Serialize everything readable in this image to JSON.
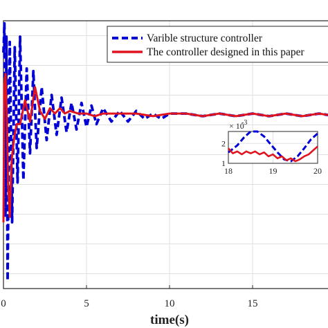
{
  "chart_data": {
    "type": "line",
    "xlabel": "time(s)",
    "xlim": [
      0,
      20
    ],
    "xticks": [
      "0",
      "5",
      "10",
      "15"
    ],
    "ylim": [
      -0.0065,
      0.0036
    ],
    "grid": true,
    "legend_position": "top-right",
    "colors": {
      "series_0": "#0000d6",
      "series_1": "#e0141e"
    },
    "series": [
      {
        "name": "Varible structure controller",
        "style": "dashed",
        "x": [
          0,
          0.06,
          0.12,
          0.18,
          0.25,
          0.38,
          0.52,
          0.68,
          0.85,
          1.0,
          1.2,
          1.4,
          1.6,
          1.8,
          2.0,
          2.3,
          2.6,
          2.9,
          3.2,
          3.5,
          3.8,
          4.1,
          4.4,
          4.7,
          5.0,
          5.3,
          5.6,
          6.0,
          6.5,
          7.0,
          7.5,
          8.0,
          8.5,
          9.0,
          9.5,
          10,
          11,
          12,
          13,
          14,
          15,
          16,
          17,
          18,
          19,
          20
        ],
        "values": [
          0.0024,
          0.0035,
          -0.0038,
          0.003,
          -0.0062,
          0.0028,
          -0.004,
          0.0026,
          -0.0025,
          0.003,
          -0.0024,
          0.0018,
          -0.0014,
          0.0017,
          -0.0012,
          0.0011,
          -0.0009,
          0.0008,
          -0.0007,
          0.0007,
          -0.0006,
          0.0005,
          -0.0005,
          0.0005,
          -0.0004,
          0.0004,
          -0.0003,
          0.0003,
          -0.0002,
          0.0002,
          -0.0002,
          0.0002,
          -0.0001,
          0.0001,
          -0.0001,
          0.0001,
          0.0001,
          0.0,
          0.0001,
          0.0,
          0.0001,
          0.0,
          0.0001,
          0.0,
          0.0001,
          0.0
        ]
      },
      {
        "name": "The controller designed in this paper",
        "style": "solid",
        "x": [
          0,
          0.05,
          0.12,
          0.2,
          0.28,
          0.38,
          0.5,
          0.65,
          0.8,
          1.0,
          1.3,
          1.6,
          1.9,
          2.2,
          2.5,
          2.8,
          3.1,
          3.4,
          3.7,
          4.0,
          4.5,
          5.0,
          5.5,
          6.0,
          7.0,
          8.0,
          9.0,
          10,
          11,
          12,
          13,
          14,
          15,
          16,
          17,
          18,
          19,
          20
        ],
        "values": [
          -0.004,
          0.0012,
          0.0016,
          0.0001,
          -0.0026,
          -0.0038,
          -0.0016,
          -0.0008,
          -0.0003,
          -0.0003,
          0.0006,
          -0.0002,
          0.0011,
          0.0002,
          -0.0001,
          0.0003,
          0.0001,
          0.0003,
          0.0001,
          0.0002,
          0.0001,
          0.0001,
          0.0,
          0.0001,
          0.0001,
          0.0001,
          0.0,
          0.0001,
          0.0001,
          0.0,
          0.0001,
          0.0,
          0.0001,
          0.0,
          0.0001,
          0.0,
          0.0001,
          0.0
        ]
      }
    ],
    "inset": {
      "x_range": [
        18,
        20
      ],
      "y_range": [
        1,
        2.6
      ],
      "xticks": [
        "18",
        "19",
        "20"
      ],
      "yticks": [
        "1",
        "2"
      ],
      "y_multiplier_base": "× 10",
      "y_multiplier_exp": "-3",
      "series": [
        {
          "name": "Varible structure controller",
          "x": [
            18.0,
            18.2,
            18.35,
            18.5,
            18.65,
            18.8,
            18.95,
            19.1,
            19.25,
            19.4,
            19.55,
            19.7,
            19.85,
            20.0
          ],
          "values": [
            1.55,
            1.9,
            2.3,
            2.6,
            2.6,
            2.35,
            1.95,
            1.55,
            1.2,
            1.1,
            1.35,
            1.75,
            2.2,
            2.5
          ]
        },
        {
          "name": "The controller designed in this paper",
          "x": [
            18.0,
            18.1,
            18.2,
            18.3,
            18.4,
            18.5,
            18.6,
            18.7,
            18.8,
            18.9,
            19.0,
            19.1,
            19.2,
            19.3,
            19.4,
            19.5,
            19.6,
            19.7,
            19.8,
            19.9,
            20.0
          ],
          "values": [
            1.75,
            1.5,
            1.6,
            1.45,
            1.6,
            1.5,
            1.6,
            1.45,
            1.55,
            1.35,
            1.45,
            1.25,
            1.35,
            1.15,
            1.25,
            1.1,
            1.2,
            1.35,
            1.45,
            1.65,
            1.85
          ]
        }
      ]
    }
  }
}
